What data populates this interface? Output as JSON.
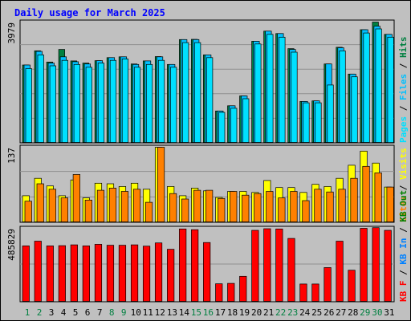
{
  "chart_data": [
    {
      "type": "bar",
      "title": "Daily usage for March 2025",
      "categories": [
        "1",
        "2",
        "3",
        "4",
        "5",
        "6",
        "7",
        "8",
        "9",
        "10",
        "11",
        "12",
        "13",
        "14",
        "15",
        "16",
        "17",
        "18",
        "19",
        "20",
        "21",
        "22",
        "23",
        "24",
        "25",
        "26",
        "27",
        "28",
        "29",
        "30",
        "31"
      ],
      "ytick_label": "3979",
      "ylim": [
        0,
        4400
      ],
      "series": [
        {
          "name": "Hits",
          "color": "#008040",
          "values": [
            2830,
            3350,
            2940,
            3400,
            2980,
            2900,
            2990,
            3100,
            3130,
            2870,
            2980,
            3140,
            2850,
            3760,
            3770,
            3200,
            1150,
            1340,
            1700,
            3700,
            4070,
            3980,
            3430,
            1500,
            1520,
            2870,
            3480,
            2500,
            4120,
            4400,
            3950
          ]
        },
        {
          "name": "Files",
          "color": "#00c0ff",
          "values": [
            2830,
            3330,
            2900,
            3130,
            2950,
            2870,
            2990,
            3100,
            3130,
            2850,
            2980,
            3130,
            2850,
            3760,
            3760,
            3200,
            1150,
            1340,
            1700,
            3700,
            4070,
            3980,
            3400,
            1500,
            1520,
            2870,
            3460,
            2500,
            4120,
            4250,
            3950
          ]
        },
        {
          "name": "Pages",
          "color": "#00e0ff",
          "values": [
            2700,
            3200,
            2800,
            3000,
            2850,
            2750,
            2900,
            3000,
            3050,
            2750,
            2850,
            3000,
            2750,
            3650,
            3650,
            3100,
            1100,
            1250,
            1600,
            3600,
            3950,
            3850,
            3300,
            1450,
            1450,
            2100,
            3350,
            2400,
            4000,
            4150,
            3850
          ]
        }
      ]
    },
    {
      "type": "bar",
      "categories": [
        "1",
        "2",
        "3",
        "4",
        "5",
        "6",
        "7",
        "8",
        "9",
        "10",
        "11",
        "12",
        "13",
        "14",
        "15",
        "16",
        "17",
        "18",
        "19",
        "20",
        "21",
        "22",
        "23",
        "24",
        "25",
        "26",
        "27",
        "28",
        "29",
        "30",
        "31"
      ],
      "ytick_label": "137",
      "ylim": [
        0,
        137
      ],
      "series": [
        {
          "name": "Visits",
          "color": "#ffff00",
          "values": [
            48,
            80,
            66,
            48,
            77,
            44,
            71,
            70,
            65,
            71,
            60,
            137,
            65,
            48,
            62,
            57,
            45,
            56,
            56,
            54,
            76,
            63,
            63,
            54,
            69,
            65,
            80,
            104,
            130,
            108,
            64
          ]
        },
        {
          "name": "Sites",
          "color": "#ff8000",
          "values": [
            38,
            70,
            60,
            44,
            87,
            40,
            58,
            62,
            56,
            60,
            36,
            137,
            52,
            42,
            58,
            58,
            43,
            56,
            49,
            52,
            56,
            44,
            56,
            39,
            60,
            55,
            60,
            80,
            102,
            90,
            64
          ]
        }
      ]
    },
    {
      "type": "bar",
      "categories": [
        "1",
        "2",
        "3",
        "4",
        "5",
        "6",
        "7",
        "8",
        "9",
        "10",
        "11",
        "12",
        "13",
        "14",
        "15",
        "16",
        "17",
        "18",
        "19",
        "20",
        "21",
        "22",
        "23",
        "24",
        "25",
        "26",
        "27",
        "28",
        "29",
        "30",
        "31"
      ],
      "ytick_label": "485829",
      "ylim": [
        0,
        540000
      ],
      "series": [
        {
          "name": "KB F",
          "color": "#ff0000",
          "values": [
            410000,
            445000,
            410000,
            412000,
            418000,
            410000,
            422000,
            415000,
            415000,
            418000,
            408000,
            432000,
            385000,
            535000,
            530000,
            435000,
            130000,
            133000,
            185000,
            525000,
            537000,
            535000,
            465000,
            128000,
            128000,
            250000,
            445000,
            230000,
            540000,
            545000,
            525000
          ]
        }
      ]
    }
  ],
  "axis_titles": [
    [
      {
        "text": "Pages",
        "color": "#00e0ff"
      },
      {
        "text": " / ",
        "color": "#000000"
      },
      {
        "text": "Files",
        "color": "#00c0ff"
      },
      {
        "text": " / ",
        "color": "#000000"
      },
      {
        "text": "Hits",
        "color": "#008040"
      }
    ],
    [
      {
        "text": "Sites",
        "color": "#ff8000"
      },
      {
        "text": " / ",
        "color": "#000000"
      },
      {
        "text": "Visits",
        "color": "#ffff00"
      }
    ],
    [
      {
        "text": "KB F",
        "color": "#ff0000"
      },
      {
        "text": " / ",
        "color": "#000000"
      },
      {
        "text": "KB In",
        "color": "#0080ff"
      },
      {
        "text": " / ",
        "color": "#000000"
      },
      {
        "text": "KB Out",
        "color": "#008000"
      }
    ]
  ],
  "weekend_days": [
    "1",
    "2",
    "8",
    "9",
    "15",
    "16",
    "22",
    "23",
    "29",
    "30"
  ],
  "colors": {
    "background": "#c0c0c0",
    "plot": "#c0c0c0",
    "frame": "#000000",
    "title": "#0000ff",
    "weekday_label": "#000000",
    "weekend_label": "#008040"
  }
}
